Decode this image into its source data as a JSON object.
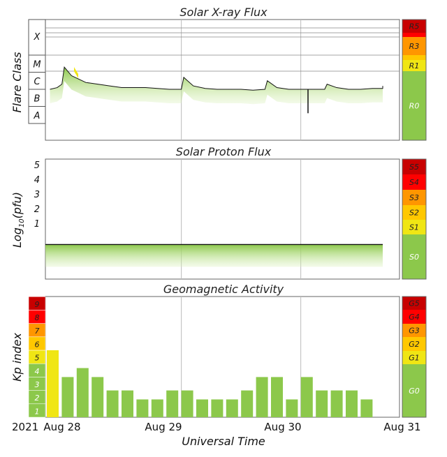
{
  "colors": {
    "green": "#8cc84b",
    "yellow": "#f0e614",
    "gold": "#ffc800",
    "orange": "#ff9600",
    "red": "#ff0000",
    "darkred": "#c80000",
    "light_green_fill": "#d9f0b8"
  },
  "xaxis": {
    "title": "Universal Time",
    "year": "2021",
    "labels": [
      "Aug 28",
      "Aug 29",
      "Aug 30",
      "Aug 31"
    ]
  },
  "chart_data": [
    {
      "type": "line",
      "title": "Solar X-ray Flux",
      "ylabel": "Flare Class",
      "ytick_labels": [
        "A",
        "B",
        "C",
        "M",
        "X"
      ],
      "scale": [
        {
          "label": "R5",
          "color": "#c80000"
        },
        {
          "label": "R3",
          "color": "#ff9600"
        },
        {
          "label": "R1",
          "color": "#f0e614"
        },
        {
          "label": "R0",
          "color": "#8cc84b"
        }
      ],
      "x_range_days": [
        "Aug 27 (approx.)",
        "Aug 31"
      ],
      "series": [
        {
          "x": [
            27.9,
            27.96,
            28.0,
            28.02,
            28.08,
            28.14,
            28.2,
            28.3,
            28.4,
            28.5,
            28.6,
            28.7,
            28.8,
            28.9,
            29.0,
            29.02,
            29.1,
            29.2,
            29.3,
            29.4,
            29.5,
            29.6,
            29.7,
            29.72,
            29.8,
            29.9,
            30.0,
            30.1,
            30.2,
            30.22,
            30.3,
            30.4,
            30.5,
            30.6,
            30.7,
            30.8,
            30.9,
            31.0,
            30.8
          ],
          "y": [
            2.0,
            2.1,
            2.3,
            3.3,
            2.8,
            2.6,
            2.4,
            2.3,
            2.2,
            2.1,
            2.1,
            2.1,
            2.05,
            2.0,
            2.0,
            2.7,
            2.2,
            2.05,
            2.0,
            2.0,
            2.0,
            1.95,
            2.0,
            2.5,
            2.1,
            2.0,
            2.0,
            2.0,
            2.0,
            2.3,
            2.1,
            2.0,
            2.0,
            2.05,
            2.05,
            2.1,
            2.05,
            2.2,
            2.2
          ]
        }
      ]
    },
    {
      "type": "line",
      "title": "Solar Proton Flux",
      "ylabel": "Log10(pfu)",
      "ytick_labels": [
        "1",
        "2",
        "3",
        "4",
        "5"
      ],
      "scale": [
        {
          "label": "S5",
          "color": "#c80000"
        },
        {
          "label": "S4",
          "color": "#ff0000"
        },
        {
          "label": "S3",
          "color": "#ff9600"
        },
        {
          "label": "S2",
          "color": "#ffc800"
        },
        {
          "label": "S1",
          "color": "#f0e614"
        },
        {
          "label": "S0",
          "color": "#8cc84b"
        }
      ],
      "series": [
        {
          "x": [
            27.9,
            31.0
          ],
          "y": [
            -0.45,
            -0.45
          ]
        }
      ]
    },
    {
      "type": "bar",
      "title": "Geomagnetic Activity",
      "ylabel": "Kp index",
      "ylim": [
        0,
        9
      ],
      "ytick_labels": [
        "1",
        "2",
        "3",
        "4",
        "5",
        "6",
        "7",
        "8",
        "9"
      ],
      "scale": [
        {
          "label": "G5",
          "color": "#c80000"
        },
        {
          "label": "G4",
          "color": "#ff0000"
        },
        {
          "label": "G3",
          "color": "#ff9600"
        },
        {
          "label": "G2",
          "color": "#ffc800"
        },
        {
          "label": "G1",
          "color": "#f0e614"
        },
        {
          "label": "G0",
          "color": "#8cc84b"
        }
      ],
      "values": [
        5,
        3,
        3.67,
        3,
        2,
        2,
        1.33,
        1.33,
        2,
        2,
        1.33,
        1.33,
        1.33,
        2,
        3,
        3,
        1.33,
        3,
        2,
        2,
        2,
        1.33
      ]
    }
  ]
}
